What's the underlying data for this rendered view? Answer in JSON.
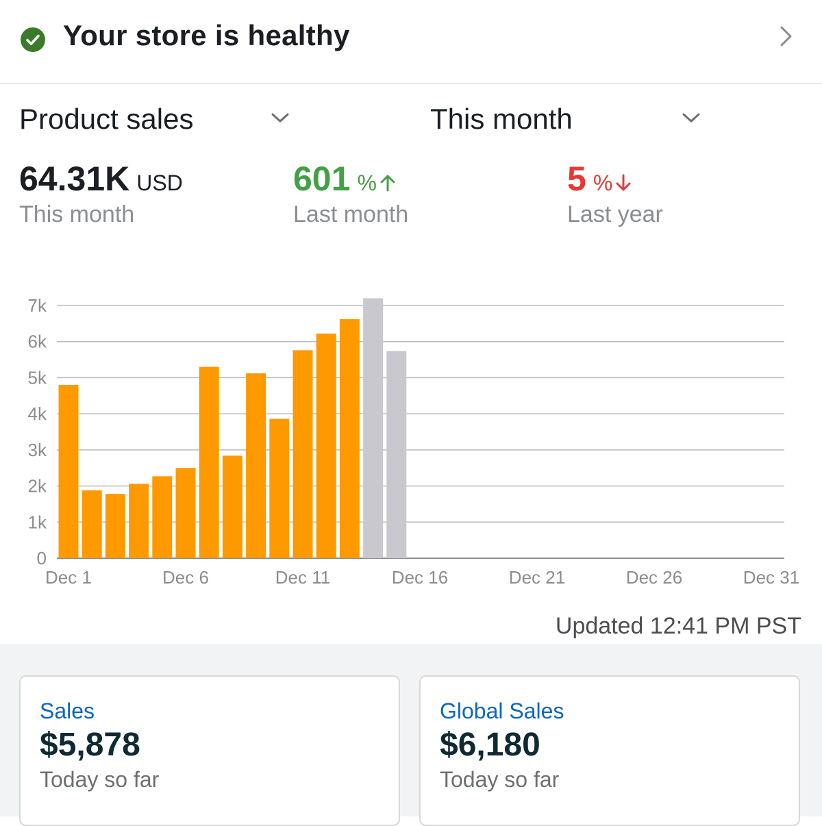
{
  "health": {
    "title": "Your store is healthy",
    "status_color": "#3c7a2b"
  },
  "selectors": {
    "metric": "Product sales",
    "period": "This month"
  },
  "summary": {
    "total_value": "64.31K",
    "total_unit": "USD",
    "total_label": "This month",
    "last_month_value": "601",
    "last_month_unit": "%",
    "last_month_label": "Last month",
    "last_month_color": "#43a047",
    "last_year_value": "5",
    "last_year_unit": "%",
    "last_year_label": "Last year",
    "last_year_color": "#e53935"
  },
  "chart_data": {
    "type": "bar",
    "x_tick_labels": [
      "Dec 1",
      "Dec 6",
      "Dec 11",
      "Dec 16",
      "Dec 21",
      "Dec 26",
      "Dec 31"
    ],
    "y_tick_labels": [
      "0",
      "1k",
      "2k",
      "3k",
      "4k",
      "5k",
      "6k",
      "7k"
    ],
    "ylim": [
      0,
      7000
    ],
    "grid": true,
    "series": [
      {
        "color": "#ff9900",
        "days": [
          "Dec 1",
          "Dec 2",
          "Dec 3",
          "Dec 4",
          "Dec 5",
          "Dec 6",
          "Dec 7",
          "Dec 8",
          "Dec 9",
          "Dec 10",
          "Dec 11",
          "Dec 12",
          "Dec 13"
        ],
        "values": [
          4800,
          1880,
          1780,
          2060,
          2270,
          2500,
          5300,
          2840,
          5120,
          3860,
          5760,
          6220,
          6620
        ]
      },
      {
        "color": "#c8c8ce",
        "days": [
          "Dec 14",
          "Dec 15"
        ],
        "values": [
          7200,
          5740
        ]
      }
    ]
  },
  "updated": "Updated 12:41 PM PST",
  "cards": [
    {
      "title": "Sales",
      "value": "$5,878",
      "sub": "Today so far"
    },
    {
      "title": "Global Sales",
      "value": "$6,180",
      "sub": "Today so far"
    }
  ]
}
